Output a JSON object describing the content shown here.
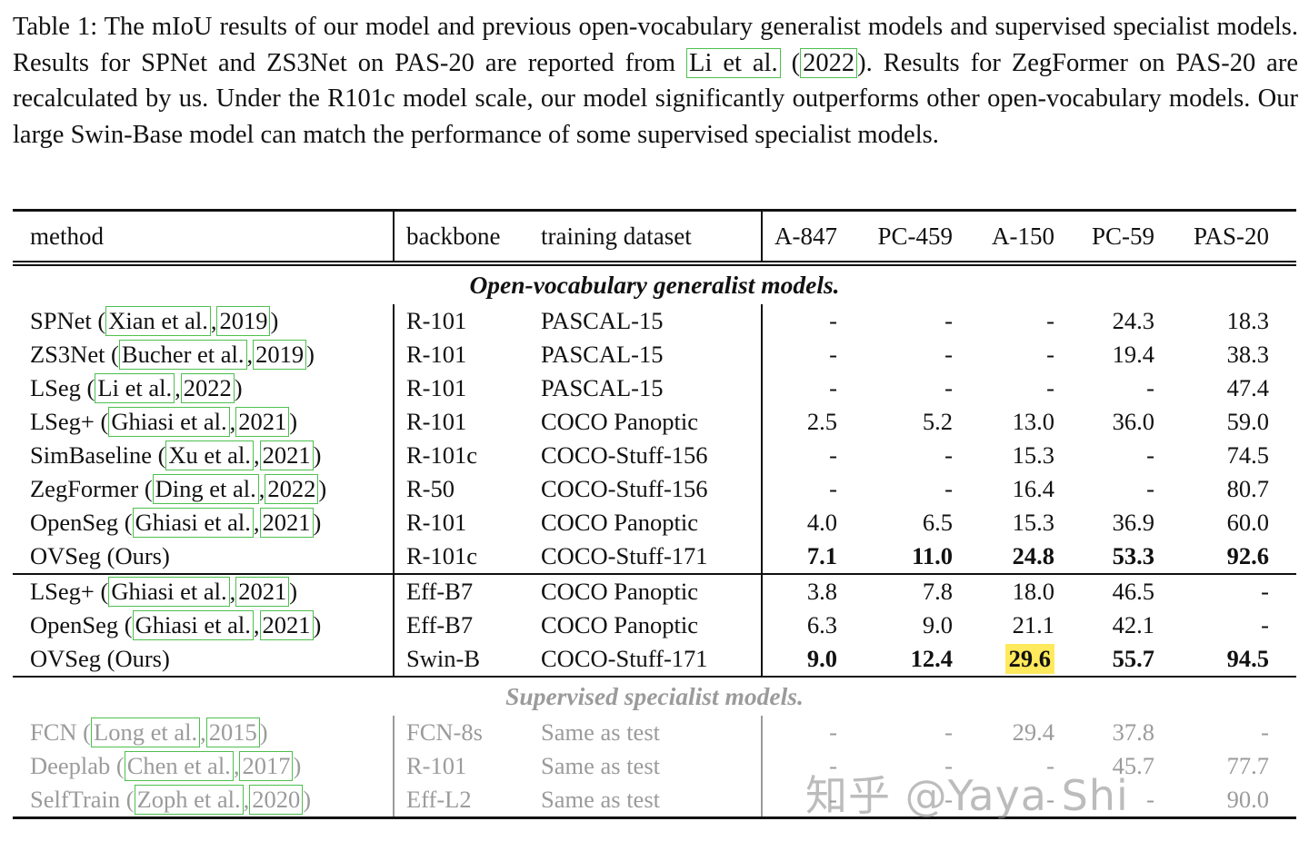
{
  "caption": {
    "parts": [
      {
        "t": "Table 1: The mIoU results of our model and previous open-vocabulary generalist models and supervised specialist models. Results for SPNet and ZS3Net on PAS-20 are reported from ",
        "box": false
      },
      {
        "t": "Li et al.",
        "box": true
      },
      {
        "t": " (",
        "box": false
      },
      {
        "t": "2022",
        "box": true
      },
      {
        "t": "). Results for ZegFormer on PAS-20 are recalculated by us. Under the R101c model scale, our model significantly outperforms other open-vocabulary models. Our large Swin-Base model can match the performance of some supervised specialist models.",
        "box": false
      }
    ]
  },
  "table": {
    "headers": [
      "method",
      "backbone",
      "training dataset",
      "A-847",
      "PC-459",
      "A-150",
      "PC-59",
      "PAS-20"
    ],
    "blocks": [
      {
        "type": "title",
        "text": "Open-vocabulary generalist models.",
        "gray": false
      },
      {
        "type": "rows",
        "rows": [
          {
            "method": [
              {
                "t": "SPNet (",
                "box": false
              },
              {
                "t": "Xian et al.",
                "box": true
              },
              {
                "t": ", ",
                "box": false
              },
              {
                "t": "2019",
                "box": true
              },
              {
                "t": ")",
                "box": false
              }
            ],
            "backbone": "R-101",
            "dataset": "PASCAL-15",
            "values": [
              "-",
              "-",
              "-",
              "24.3",
              "18.3"
            ],
            "bold": false,
            "gray": false,
            "highlight": null
          },
          {
            "method": [
              {
                "t": "ZS3Net (",
                "box": false
              },
              {
                "t": "Bucher et al.",
                "box": true
              },
              {
                "t": ", ",
                "box": false
              },
              {
                "t": "2019",
                "box": true
              },
              {
                "t": ")",
                "box": false
              }
            ],
            "backbone": "R-101",
            "dataset": "PASCAL-15",
            "values": [
              "-",
              "-",
              "-",
              "19.4",
              "38.3"
            ],
            "bold": false,
            "gray": false,
            "highlight": null
          },
          {
            "method": [
              {
                "t": "LSeg (",
                "box": false
              },
              {
                "t": "Li et al.",
                "box": true
              },
              {
                "t": ", ",
                "box": false
              },
              {
                "t": "2022",
                "box": true
              },
              {
                "t": ")",
                "box": false
              }
            ],
            "backbone": "R-101",
            "dataset": "PASCAL-15",
            "values": [
              "-",
              "-",
              "-",
              "-",
              "47.4"
            ],
            "bold": false,
            "gray": false,
            "highlight": null
          },
          {
            "method": [
              {
                "t": "LSeg+ (",
                "box": false
              },
              {
                "t": "Ghiasi et al.",
                "box": true
              },
              {
                "t": ", ",
                "box": false
              },
              {
                "t": "2021",
                "box": true
              },
              {
                "t": ")",
                "box": false
              }
            ],
            "backbone": "R-101",
            "dataset": "COCO Panoptic",
            "values": [
              "2.5",
              "5.2",
              "13.0",
              "36.0",
              "59.0"
            ],
            "bold": false,
            "gray": false,
            "highlight": null
          },
          {
            "method": [
              {
                "t": "SimBaseline (",
                "box": false
              },
              {
                "t": "Xu et al.",
                "box": true
              },
              {
                "t": ", ",
                "box": false
              },
              {
                "t": "2021",
                "box": true
              },
              {
                "t": ")",
                "box": false
              }
            ],
            "backbone": "R-101c",
            "dataset": "COCO-Stuff-156",
            "values": [
              "-",
              "-",
              "15.3",
              "-",
              "74.5"
            ],
            "bold": false,
            "gray": false,
            "highlight": null
          },
          {
            "method": [
              {
                "t": "ZegFormer (",
                "box": false
              },
              {
                "t": "Ding et al.",
                "box": true
              },
              {
                "t": ", ",
                "box": false
              },
              {
                "t": "2022",
                "box": true
              },
              {
                "t": ")",
                "box": false
              }
            ],
            "backbone": "R-50",
            "dataset": "COCO-Stuff-156",
            "values": [
              "-",
              "-",
              "16.4",
              "-",
              "80.7"
            ],
            "bold": false,
            "gray": false,
            "highlight": null
          },
          {
            "method": [
              {
                "t": "OpenSeg (",
                "box": false
              },
              {
                "t": "Ghiasi et al.",
                "box": true
              },
              {
                "t": ", ",
                "box": false
              },
              {
                "t": "2021",
                "box": true
              },
              {
                "t": ")",
                "box": false
              }
            ],
            "backbone": "R-101",
            "dataset": "COCO Panoptic",
            "values": [
              "4.0",
              "6.5",
              "15.3",
              "36.9",
              "60.0"
            ],
            "bold": false,
            "gray": false,
            "highlight": null
          },
          {
            "method": [
              {
                "t": "OVSeg (Ours)",
                "box": false
              }
            ],
            "backbone": "R-101c",
            "dataset": "COCO-Stuff-171",
            "values": [
              "7.1",
              "11.0",
              "24.8",
              "53.3",
              "92.6"
            ],
            "bold": true,
            "gray": false,
            "highlight": null
          }
        ]
      },
      {
        "type": "rule"
      },
      {
        "type": "rows",
        "rows": [
          {
            "method": [
              {
                "t": "LSeg+ (",
                "box": false
              },
              {
                "t": "Ghiasi et al.",
                "box": true
              },
              {
                "t": ", ",
                "box": false
              },
              {
                "t": "2021",
                "box": true
              },
              {
                "t": ")",
                "box": false
              }
            ],
            "backbone": "Eff-B7",
            "dataset": "COCO Panoptic",
            "values": [
              "3.8",
              "7.8",
              "18.0",
              "46.5",
              "-"
            ],
            "bold": false,
            "gray": false,
            "highlight": null
          },
          {
            "method": [
              {
                "t": "OpenSeg (",
                "box": false
              },
              {
                "t": "Ghiasi et al.",
                "box": true
              },
              {
                "t": ", ",
                "box": false
              },
              {
                "t": "2021",
                "box": true
              },
              {
                "t": ")",
                "box": false
              }
            ],
            "backbone": "Eff-B7",
            "dataset": "COCO Panoptic",
            "values": [
              "6.3",
              "9.0",
              "21.1",
              "42.1",
              "-"
            ],
            "bold": false,
            "gray": false,
            "highlight": null
          },
          {
            "method": [
              {
                "t": "OVSeg (Ours)",
                "box": false
              }
            ],
            "backbone": "Swin-B",
            "dataset": "COCO-Stuff-171",
            "values": [
              "9.0",
              "12.4",
              "29.6",
              "55.7",
              "94.5"
            ],
            "bold": true,
            "gray": false,
            "highlight": 2
          }
        ]
      },
      {
        "type": "rule"
      },
      {
        "type": "title",
        "text": "Supervised specialist models.",
        "gray": true
      },
      {
        "type": "rows",
        "rows": [
          {
            "method": [
              {
                "t": "FCN (",
                "box": false
              },
              {
                "t": "Long et al.",
                "box": true
              },
              {
                "t": ", ",
                "box": false
              },
              {
                "t": "2015",
                "box": true
              },
              {
                "t": ")",
                "box": false
              }
            ],
            "backbone": "FCN-8s",
            "dataset": "Same as test",
            "values": [
              "-",
              "-",
              "29.4",
              "37.8",
              "-"
            ],
            "bold": false,
            "gray": true,
            "highlight": null
          },
          {
            "method": [
              {
                "t": "Deeplab (",
                "box": false
              },
              {
                "t": "Chen et al.",
                "box": true
              },
              {
                "t": ", ",
                "box": false
              },
              {
                "t": "2017",
                "box": true
              },
              {
                "t": ")",
                "box": false
              }
            ],
            "backbone": "R-101",
            "dataset": "Same as test",
            "values": [
              "-",
              "-",
              "-",
              "45.7",
              "77.7"
            ],
            "bold": false,
            "gray": true,
            "highlight": null
          },
          {
            "method": [
              {
                "t": "SelfTrain (",
                "box": false
              },
              {
                "t": "Zoph et al.",
                "box": true
              },
              {
                "t": ", ",
                "box": false
              },
              {
                "t": "2020",
                "box": true
              },
              {
                "t": ")",
                "box": false
              }
            ],
            "backbone": "Eff-L2",
            "dataset": "Same as test",
            "values": [
              "-",
              "-",
              "-",
              "-",
              "90.0"
            ],
            "bold": false,
            "gray": true,
            "highlight": null
          }
        ]
      }
    ]
  },
  "watermark": "知乎 @Yaya Shi",
  "colors": {
    "citation_box": "#4ec04e",
    "highlight": "#ffe95c",
    "gray_text": "#9b9b9b",
    "text": "#111111"
  }
}
